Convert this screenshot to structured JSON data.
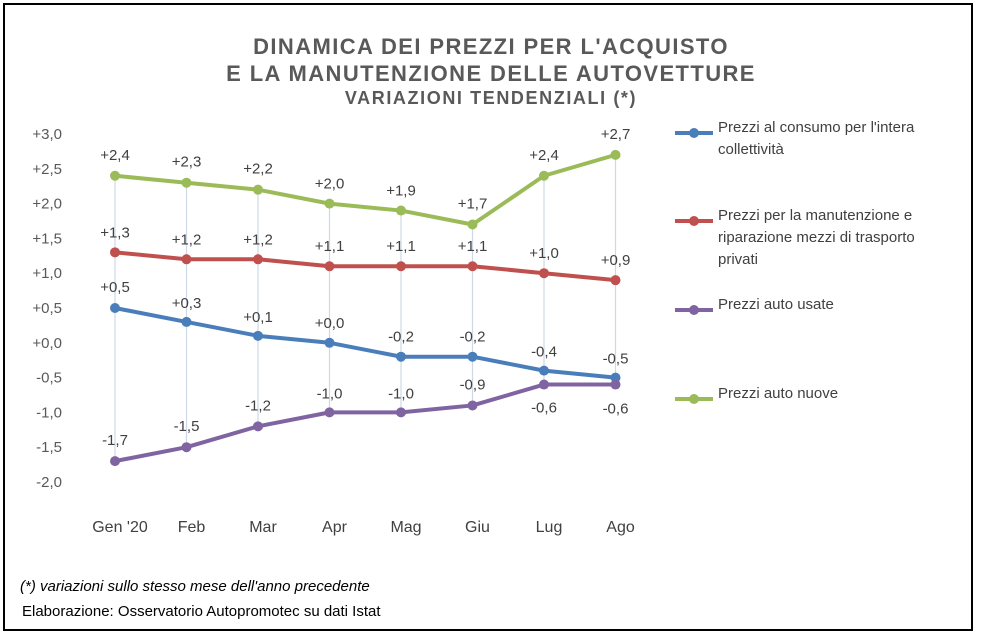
{
  "title": {
    "line1": "DINAMICA DEI PREZZI PER L'ACQUISTO",
    "line2": "E LA MANUTENZIONE DELLE AUTOVETTURE",
    "line3": "VARIAZIONI TENDENZIALI (*)"
  },
  "footnote": "(*) variazioni sullo stesso mese dell'anno precedente",
  "source": "Elaborazione: Osservatorio Autopromotec su dati Istat",
  "chart_data": {
    "type": "line",
    "categories": [
      "Gen '20",
      "Feb",
      "Mar",
      "Apr",
      "Mag",
      "Giu",
      "Lug",
      "Ago"
    ],
    "ylim": [
      -2.0,
      3.0
    ],
    "yticks": [
      "+3,0",
      "+2,5",
      "+2,0",
      "+1,5",
      "+1,0",
      "+0,5",
      "+0,0",
      "-0,5",
      "-1,0",
      "-1,5",
      "-2,0"
    ],
    "ytick_values": [
      3.0,
      2.5,
      2.0,
      1.5,
      1.0,
      0.5,
      0.0,
      -0.5,
      -1.0,
      -1.5,
      -2.0
    ],
    "grid": "vertical drop lines",
    "legend_position": "right",
    "series": [
      {
        "name": "Prezzi al consumo per l'intera collettività",
        "color": "#4a7ebb",
        "values": [
          0.5,
          0.3,
          0.1,
          0.0,
          -0.2,
          -0.2,
          -0.4,
          -0.5
        ],
        "labels": [
          "+0,5",
          "+0,3",
          "+0,1",
          "+0,0",
          "-0,2",
          "-0,2",
          "-0,4",
          "-0,5"
        ]
      },
      {
        "name": "Prezzi per la manutenzione e riparazione mezzi di trasporto privati",
        "color": "#c0504d",
        "values": [
          1.3,
          1.2,
          1.2,
          1.1,
          1.1,
          1.1,
          1.0,
          0.9
        ],
        "labels": [
          "+1,3",
          "+1,2",
          "+1,2",
          "+1,1",
          "+1,1",
          "+1,1",
          "+1,0",
          "+0,9"
        ]
      },
      {
        "name": "Prezzi auto usate",
        "color": "#8064a2",
        "values": [
          -1.7,
          -1.5,
          -1.2,
          -1.0,
          -1.0,
          -0.9,
          -0.6,
          -0.6
        ],
        "labels": [
          "-1,7",
          "-1,5",
          "-1,2",
          "-1,0",
          "-1,0",
          "-0,9",
          "-0,6",
          "-0,6"
        ]
      },
      {
        "name": "Prezzi auto nuove",
        "color": "#9bbb59",
        "values": [
          2.4,
          2.3,
          2.2,
          2.0,
          1.9,
          1.7,
          2.4,
          2.7
        ],
        "labels": [
          "+2,4",
          "+2,3",
          "+2,2",
          "+2,0",
          "+1,9",
          "+1,7",
          "+2,4",
          "+2,7"
        ]
      }
    ]
  },
  "legend": {
    "items": [
      [
        "Prezzi al consumo per l'intera",
        "collettività"
      ],
      [
        "Prezzi per la manutenzione e",
        "riparazione mezzi di trasporto",
        "privati"
      ],
      [
        "Prezzi auto usate"
      ],
      [
        "Prezzi auto nuove"
      ]
    ]
  }
}
